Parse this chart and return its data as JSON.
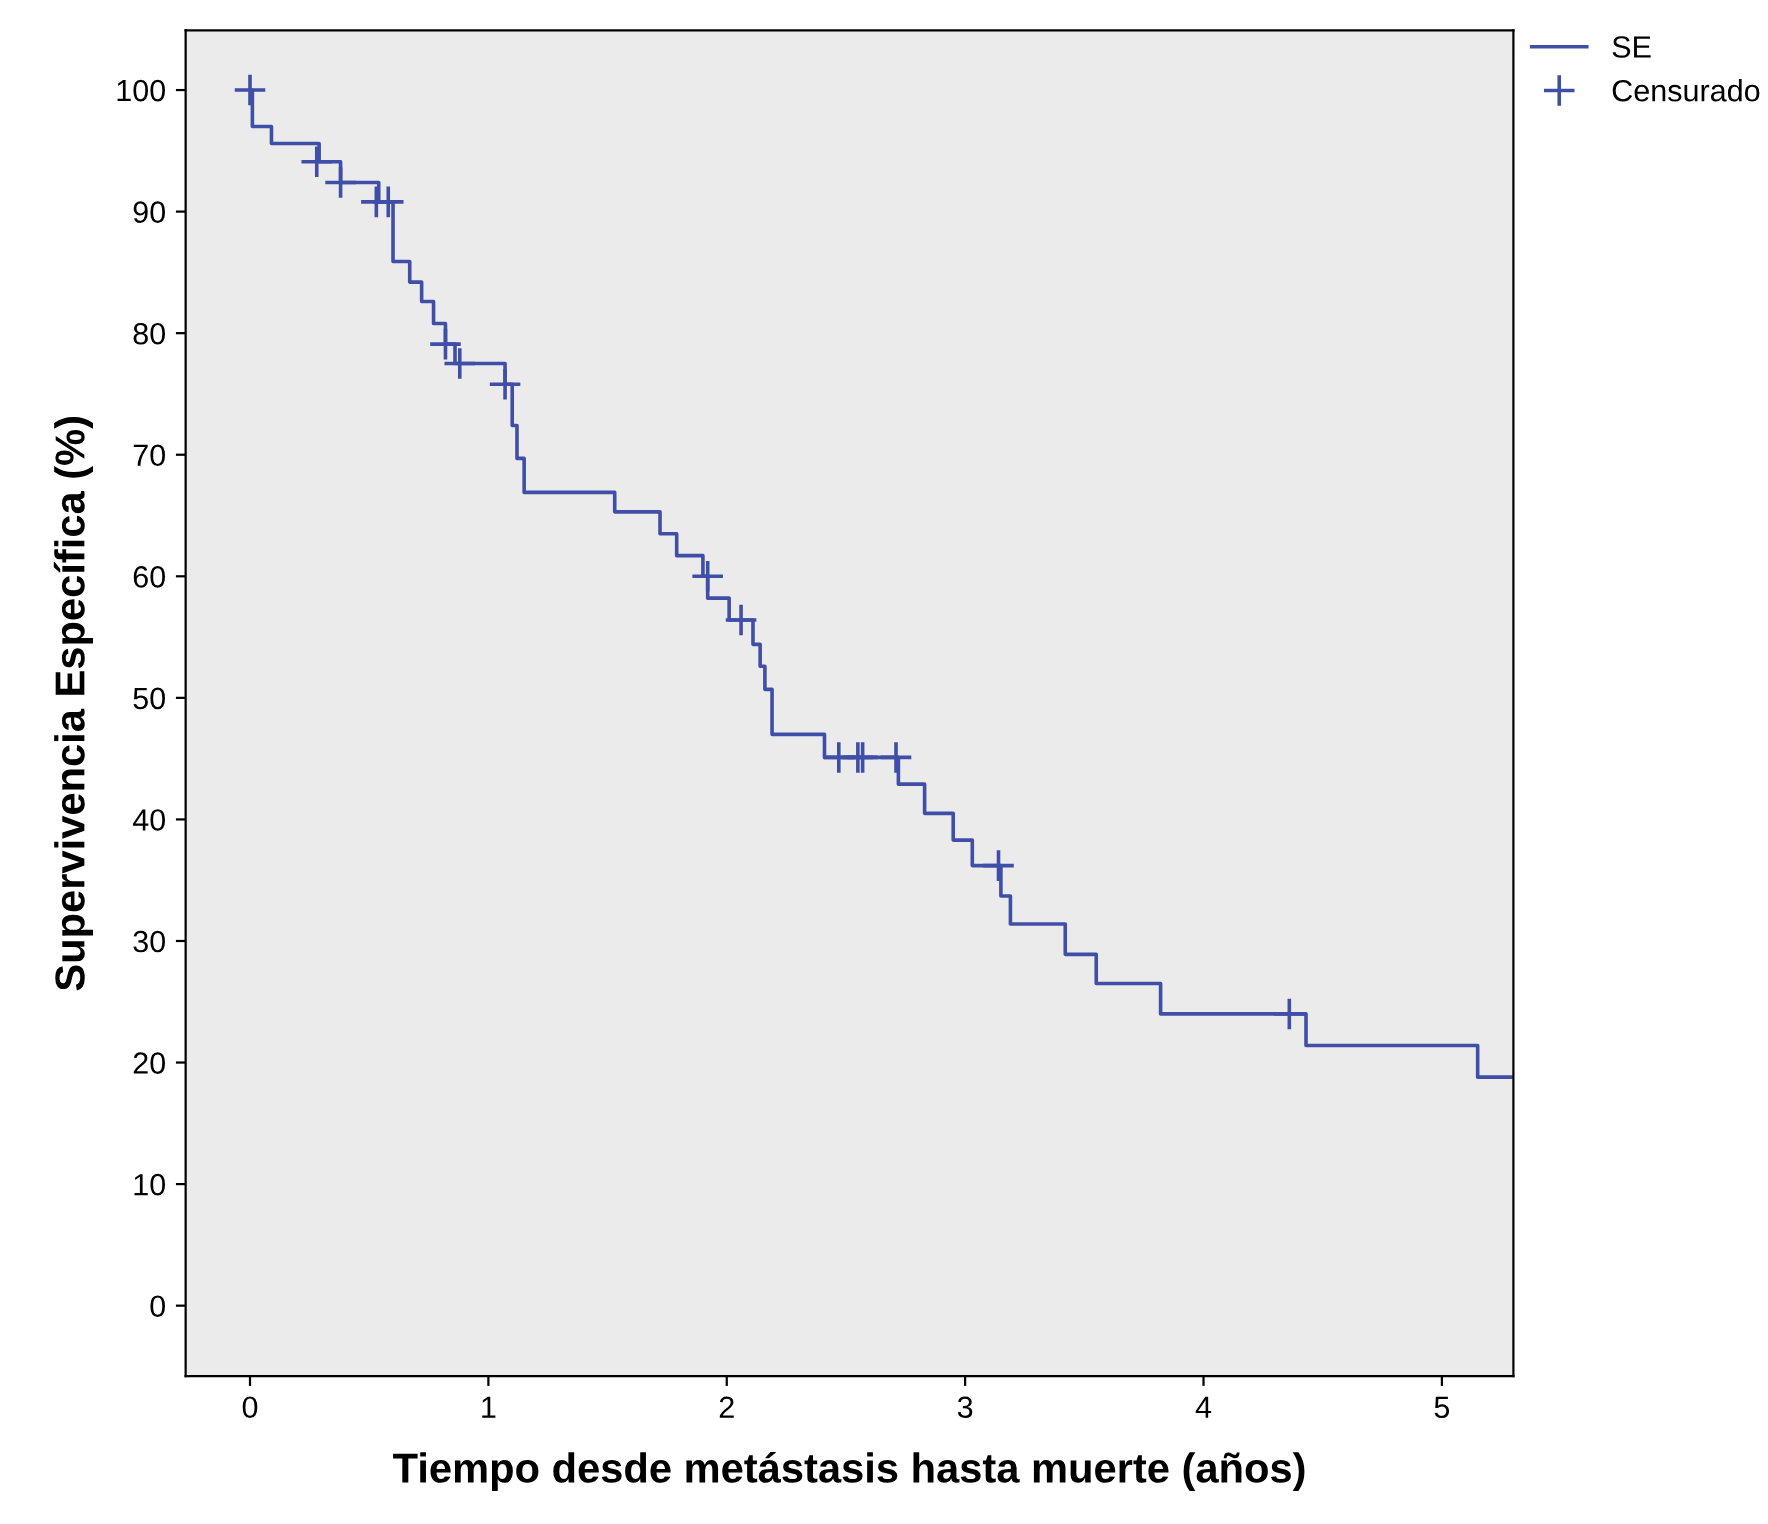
{
  "chart_data": {
    "type": "step",
    "xlabel": "Tiempo desde metástasis hasta muerte (años)",
    "ylabel": "Supervivencia Específica (%)",
    "xlim": [
      -0.27,
      5.3
    ],
    "ylim": [
      -5.8,
      104.9
    ],
    "xticks": [
      0,
      1,
      2,
      3,
      4,
      5
    ],
    "yticks": [
      0,
      10,
      20,
      30,
      40,
      50,
      60,
      70,
      80,
      90,
      100
    ],
    "grid": false,
    "legend": "top right",
    "series": [
      {
        "name": "SE",
        "color": "#3f4fa8",
        "marker": "none",
        "x": [
          0,
          0.01,
          0.09,
          0.29,
          0.38,
          0.54,
          0.6,
          0.67,
          0.72,
          0.77,
          0.82,
          0.86,
          1.07,
          1.1,
          1.12,
          1.15,
          1.53,
          1.72,
          1.79,
          1.9,
          1.92,
          2.01,
          2.11,
          2.14,
          2.16,
          2.19,
          2.41,
          2.72,
          2.83,
          2.95,
          3.03,
          3.15,
          3.19,
          3.42,
          3.55,
          3.82,
          4.43,
          5.15,
          5.29
        ],
        "values": [
          100,
          97.0,
          95.6,
          94.1,
          92.4,
          90.8,
          85.9,
          84.2,
          82.6,
          80.8,
          79.1,
          77.5,
          75.8,
          72.4,
          69.7,
          66.9,
          65.3,
          63.5,
          61.7,
          60.0,
          58.2,
          56.4,
          54.4,
          52.6,
          50.7,
          47.0,
          45.1,
          42.9,
          40.5,
          38.3,
          36.2,
          33.7,
          31.4,
          28.9,
          26.5,
          24.0,
          21.4,
          18.8,
          18.8
        ]
      },
      {
        "name": "Censurado",
        "type": "scatter",
        "color": "#3f4fa8",
        "marker": "cross",
        "x": [
          0.0,
          0.28,
          0.38,
          0.53,
          0.58,
          0.82,
          0.88,
          1.07,
          1.92,
          2.06,
          2.47,
          2.55,
          2.57,
          2.71,
          3.14,
          4.36
        ],
        "values": [
          100,
          94.1,
          92.4,
          90.8,
          90.8,
          79.1,
          77.5,
          75.8,
          60.0,
          56.4,
          45.1,
          45.1,
          45.1,
          45.1,
          36.2,
          24.0
        ]
      }
    ]
  }
}
